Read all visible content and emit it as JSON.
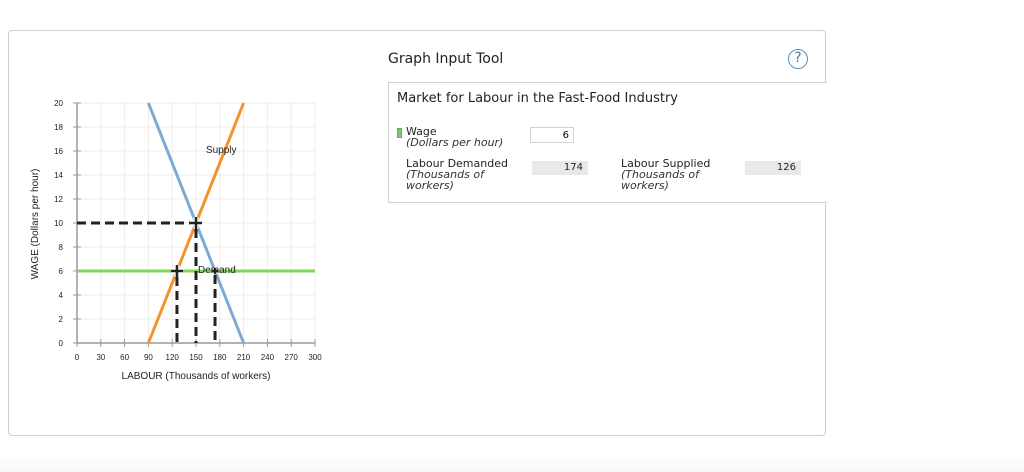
{
  "tool": {
    "title": "Graph Input Tool",
    "help_glyph": "?",
    "panel_title": "Market for Labour in the Fast-Food Industry",
    "wage": {
      "label": "Wage",
      "unit": "(Dollars per hour)",
      "value": "6"
    },
    "labour_demanded": {
      "label": "Labour Demanded",
      "unit_line1": "(Thousands of",
      "unit_line2": "workers)",
      "value": "174"
    },
    "labour_supplied": {
      "label": "Labour Supplied",
      "unit_line1": "(Thousands of",
      "unit_line2": "workers)",
      "value": "126"
    }
  },
  "colors": {
    "supply": "#f5922f",
    "demand": "#7eaad2",
    "wage_line": "#7ed957",
    "dashed": "#222222",
    "grid": "#ececec",
    "axis": "#999999"
  },
  "chart_data": {
    "type": "line",
    "title": "",
    "xlabel": "LABOUR (Thousands of workers)",
    "ylabel": "WAGE (Dollars per hour)",
    "xlim": [
      0,
      300
    ],
    "ylim": [
      0,
      20
    ],
    "xticks": [
      0,
      30,
      60,
      90,
      120,
      150,
      180,
      210,
      240,
      270,
      300
    ],
    "yticks": [
      0,
      2,
      4,
      6,
      8,
      10,
      12,
      14,
      16,
      18,
      20
    ],
    "grid": true,
    "series": [
      {
        "name": "Supply",
        "color": "#f5922f",
        "points": [
          [
            90,
            0
          ],
          [
            210,
            20
          ]
        ]
      },
      {
        "name": "Demand",
        "color": "#7eaad2",
        "points": [
          [
            90,
            20
          ],
          [
            210,
            0
          ]
        ]
      },
      {
        "name": "Wage",
        "color": "#7ed957",
        "points": [
          [
            0,
            6
          ],
          [
            300,
            6
          ]
        ]
      }
    ],
    "annotations": [
      {
        "text": "Supply",
        "x": 160,
        "y": 16
      },
      {
        "text": "Demand",
        "x": 150,
        "y": 6
      },
      {
        "type": "equilibrium",
        "x": 150,
        "y": 10
      },
      {
        "type": "quantity_supplied",
        "x": 126,
        "y": 6
      },
      {
        "type": "quantity_demanded",
        "x": 174,
        "y": 6
      }
    ]
  }
}
